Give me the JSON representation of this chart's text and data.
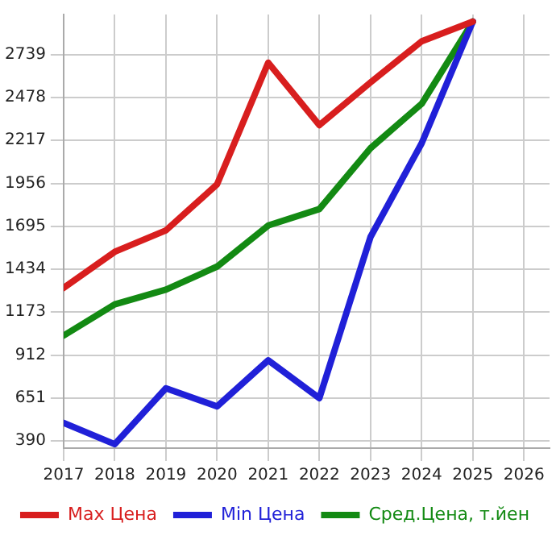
{
  "chart_data": {
    "type": "line",
    "x": [
      2017,
      2018,
      2019,
      2020,
      2021,
      2022,
      2023,
      2024,
      2025
    ],
    "series": [
      {
        "name": "Max Цена",
        "color": "#d81e1e",
        "values": [
          1320,
          1540,
          1670,
          1950,
          2690,
          2310,
          2570,
          2820,
          2940
        ]
      },
      {
        "name": "Min Цена",
        "color": "#2020d8",
        "values": [
          500,
          370,
          710,
          600,
          880,
          650,
          1630,
          2200,
          2940
        ]
      },
      {
        "name": "Сред.Цена, т.йен",
        "color": "#138a13",
        "values": [
          1030,
          1220,
          1310,
          1450,
          1700,
          1800,
          2170,
          2440,
          2940
        ]
      }
    ],
    "xlim": [
      2017,
      2026.5
    ],
    "xticks": [
      2017,
      2018,
      2019,
      2020,
      2021,
      2022,
      2023,
      2024,
      2025,
      2026
    ],
    "ylim": [
      346,
      2983
    ],
    "yticks": [
      390,
      651,
      912,
      1173,
      1434,
      1695,
      1956,
      2217,
      2478,
      2739
    ],
    "grid": true,
    "legend": "bottom",
    "marker": "none",
    "line_style": "solid"
  }
}
